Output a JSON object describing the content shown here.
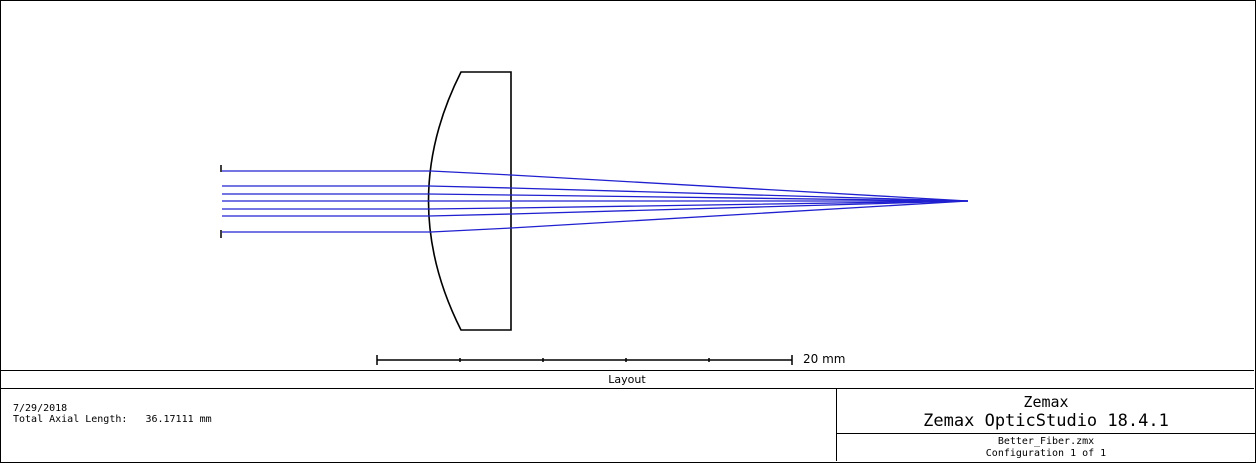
{
  "layout": {
    "scale_bar_label": "20 mm",
    "scale_bar_length_mm": 20,
    "scale_bar_ticks": 5,
    "caption": "Layout",
    "date": "7/29/2018",
    "axial_length_label": "Total Axial Length:",
    "axial_length_value": "36.17111 mm",
    "company": "Zemax",
    "product": "Zemax OpticStudio 18.4.1",
    "filename": "Better_Fiber.zmx",
    "configuration": "Configuration 1 of 1",
    "ray_color": "#2020d0",
    "lens_color": "#000000",
    "ray_count": 7
  }
}
